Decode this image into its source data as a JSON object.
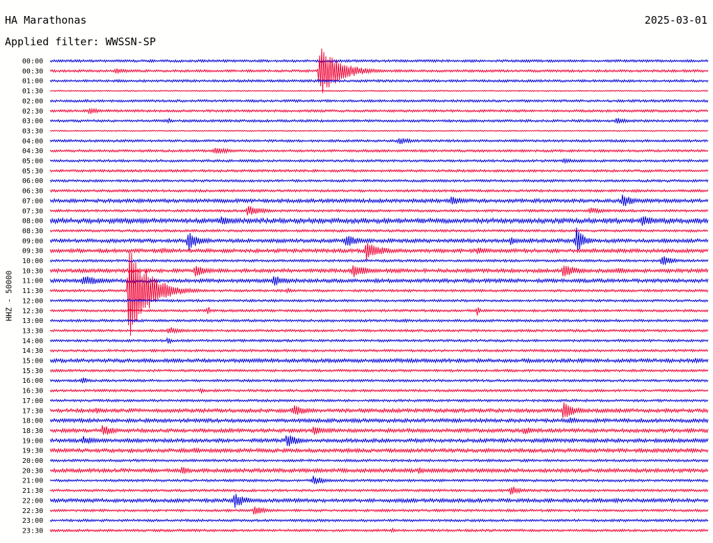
{
  "header": {
    "station": "HA Marathonas",
    "date": "2025-03-01",
    "filter": "Applied filter: WWSSN-SP"
  },
  "chart_data": {
    "type": "helicorder",
    "channel_label": "HHZ - 50000",
    "colors": {
      "blue": "#0000d8",
      "red": "#ee0033",
      "text": "#000000"
    },
    "rows": [
      "00:00",
      "00:30",
      "01:00",
      "01:30",
      "02:00",
      "02:30",
      "03:00",
      "03:30",
      "04:00",
      "04:30",
      "05:00",
      "05:30",
      "06:00",
      "06:30",
      "07:00",
      "07:30",
      "08:00",
      "08:30",
      "09:00",
      "09:30",
      "10:00",
      "10:30",
      "11:00",
      "11:30",
      "12:00",
      "12:30",
      "13:00",
      "13:30",
      "14:00",
      "14:30",
      "15:00",
      "15:30",
      "16:00",
      "16:30",
      "17:00",
      "17:30",
      "18:00",
      "18:30",
      "19:00",
      "19:30",
      "20:00",
      "20:30",
      "21:00",
      "21:30",
      "22:00",
      "22:30",
      "23:00",
      "23:30"
    ],
    "noise_level": [
      2,
      2,
      2,
      1,
      2,
      2,
      2,
      1,
      2,
      2,
      2,
      2,
      2,
      2,
      3,
      2,
      4,
      2,
      3,
      3,
      2,
      3,
      3,
      2,
      2,
      2,
      2,
      2,
      2,
      2,
      3,
      2,
      2,
      2,
      2,
      3,
      3,
      3,
      3,
      3,
      2,
      3,
      2,
      2,
      3,
      2,
      2,
      2
    ],
    "events": [
      {
        "row": 1,
        "t": 0.1,
        "amp": 4,
        "dur": 0.04
      },
      {
        "row": 1,
        "t": 0.41,
        "amp": 40,
        "dur": 0.05
      },
      {
        "row": 4,
        "t": 0.58,
        "amp": 2,
        "dur": 0.02
      },
      {
        "row": 5,
        "t": 0.06,
        "amp": 5,
        "dur": 0.03
      },
      {
        "row": 6,
        "t": 0.18,
        "amp": 5,
        "dur": 0.01
      },
      {
        "row": 6,
        "t": 0.86,
        "amp": 5,
        "dur": 0.03
      },
      {
        "row": 8,
        "t": 0.53,
        "amp": 6,
        "dur": 0.03
      },
      {
        "row": 9,
        "t": 0.25,
        "amp": 6,
        "dur": 0.04
      },
      {
        "row": 10,
        "t": 0.78,
        "amp": 4,
        "dur": 0.03
      },
      {
        "row": 13,
        "t": 0.89,
        "amp": 3,
        "dur": 0.02
      },
      {
        "row": 14,
        "t": 0.61,
        "amp": 8,
        "dur": 0.03
      },
      {
        "row": 14,
        "t": 0.87,
        "amp": 10,
        "dur": 0.03
      },
      {
        "row": 15,
        "t": 0.3,
        "amp": 8,
        "dur": 0.04
      },
      {
        "row": 15,
        "t": 0.82,
        "amp": 5,
        "dur": 0.04
      },
      {
        "row": 16,
        "t": 0.26,
        "amp": 8,
        "dur": 0.04
      },
      {
        "row": 16,
        "t": 0.53,
        "amp": 4,
        "dur": 0.03
      },
      {
        "row": 16,
        "t": 0.9,
        "amp": 8,
        "dur": 0.04
      },
      {
        "row": 18,
        "t": 0.21,
        "amp": 14,
        "dur": 0.03
      },
      {
        "row": 18,
        "t": 0.24,
        "amp": 5,
        "dur": 0.01
      },
      {
        "row": 18,
        "t": 0.45,
        "amp": 9,
        "dur": 0.04
      },
      {
        "row": 18,
        "t": 0.7,
        "amp": 6,
        "dur": 0.03
      },
      {
        "row": 18,
        "t": 0.8,
        "amp": 20,
        "dur": 0.02
      },
      {
        "row": 19,
        "t": 0.48,
        "amp": 14,
        "dur": 0.04
      },
      {
        "row": 19,
        "t": 0.65,
        "amp": 6,
        "dur": 0.03
      },
      {
        "row": 19,
        "t": 0.17,
        "amp": 4,
        "dur": 0.04
      },
      {
        "row": 20,
        "t": 0.93,
        "amp": 8,
        "dur": 0.03
      },
      {
        "row": 21,
        "t": 0.22,
        "amp": 10,
        "dur": 0.03
      },
      {
        "row": 21,
        "t": 0.46,
        "amp": 10,
        "dur": 0.04
      },
      {
        "row": 21,
        "t": 0.78,
        "amp": 10,
        "dur": 0.04
      },
      {
        "row": 21,
        "t": 0.86,
        "amp": 5,
        "dur": 0.03
      },
      {
        "row": 22,
        "t": 0.05,
        "amp": 8,
        "dur": 0.05
      },
      {
        "row": 22,
        "t": 0.34,
        "amp": 9,
        "dur": 0.03
      },
      {
        "row": 23,
        "t": 0.12,
        "amp": 70,
        "dur": 0.05
      },
      {
        "row": 23,
        "t": 0.36,
        "amp": 4,
        "dur": 0.02
      },
      {
        "row": 25,
        "t": 0.24,
        "amp": 9,
        "dur": 0.005
      },
      {
        "row": 25,
        "t": 0.65,
        "amp": 9,
        "dur": 0.005
      },
      {
        "row": 26,
        "t": 0.54,
        "amp": 4,
        "dur": 0.005
      },
      {
        "row": 27,
        "t": 0.18,
        "amp": 6,
        "dur": 0.03
      },
      {
        "row": 28,
        "t": 0.18,
        "amp": 8,
        "dur": 0.005
      },
      {
        "row": 30,
        "t": 0.5,
        "amp": 3,
        "dur": 0.03
      },
      {
        "row": 30,
        "t": 0.98,
        "amp": 4,
        "dur": 0.02
      },
      {
        "row": 32,
        "t": 0.05,
        "amp": 7,
        "dur": 0.01
      },
      {
        "row": 33,
        "t": 0.23,
        "amp": 5,
        "dur": 0.01
      },
      {
        "row": 35,
        "t": 0.07,
        "amp": 5,
        "dur": 0.02
      },
      {
        "row": 35,
        "t": 0.37,
        "amp": 8,
        "dur": 0.04
      },
      {
        "row": 35,
        "t": 0.78,
        "amp": 13,
        "dur": 0.03
      },
      {
        "row": 36,
        "t": 0.79,
        "amp": 6,
        "dur": 0.02
      },
      {
        "row": 37,
        "t": 0.08,
        "amp": 9,
        "dur": 0.03
      },
      {
        "row": 37,
        "t": 0.4,
        "amp": 7,
        "dur": 0.03
      },
      {
        "row": 37,
        "t": 0.72,
        "amp": 6,
        "dur": 0.03
      },
      {
        "row": 38,
        "t": 0.05,
        "amp": 7,
        "dur": 0.04
      },
      {
        "row": 38,
        "t": 0.36,
        "amp": 11,
        "dur": 0.03
      },
      {
        "row": 38,
        "t": 0.75,
        "amp": 4,
        "dur": 0.01
      },
      {
        "row": 39,
        "t": 0.22,
        "amp": 5,
        "dur": 0.02
      },
      {
        "row": 40,
        "t": 0.72,
        "amp": 3,
        "dur": 0.02
      },
      {
        "row": 41,
        "t": 0.2,
        "amp": 6,
        "dur": 0.03
      },
      {
        "row": 41,
        "t": 0.56,
        "amp": 5,
        "dur": 0.03
      },
      {
        "row": 42,
        "t": 0.4,
        "amp": 7,
        "dur": 0.03
      },
      {
        "row": 43,
        "t": 0.7,
        "amp": 7,
        "dur": 0.03
      },
      {
        "row": 44,
        "t": 0.28,
        "amp": 12,
        "dur": 0.03
      },
      {
        "row": 45,
        "t": 0.31,
        "amp": 7,
        "dur": 0.03
      },
      {
        "row": 47,
        "t": 0.52,
        "amp": 4,
        "dur": 0.01
      }
    ]
  }
}
